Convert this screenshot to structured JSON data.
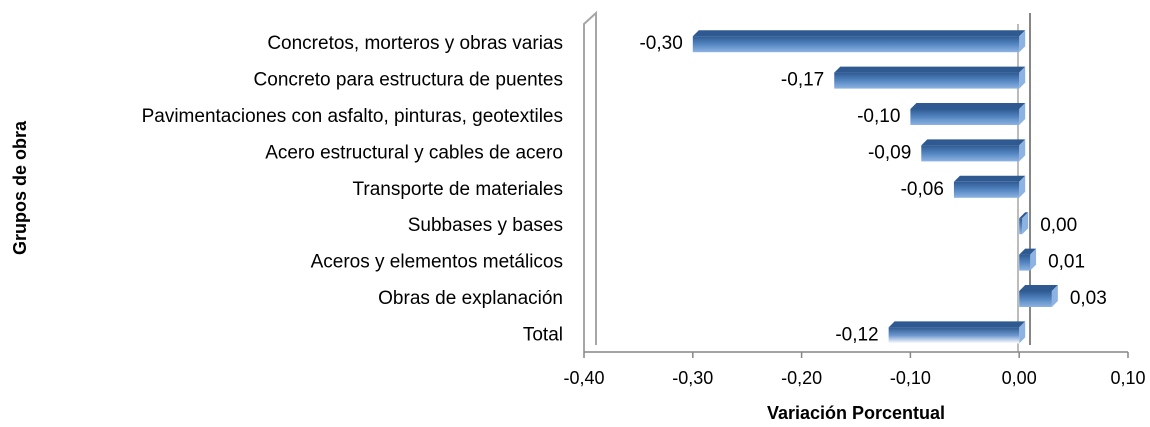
{
  "chart_data": {
    "type": "bar",
    "orientation": "horizontal",
    "categories": [
      "Concretos, morteros y obras varias",
      "Concreto para estructura de puentes",
      "Pavimentaciones con asfalto, pinturas, geotextiles",
      "Acero estructural y cables de acero",
      "Transporte de materiales",
      "Subbases y bases",
      "Aceros y elementos metálicos",
      "Obras de explanación",
      "Total"
    ],
    "values": [
      -0.3,
      -0.17,
      -0.1,
      -0.09,
      -0.06,
      0.0,
      0.01,
      0.03,
      -0.12
    ],
    "data_labels": [
      "-0,30",
      "-0,17",
      "-0,10",
      "-0,09",
      "-0,06",
      "0,00",
      "0,01",
      "0,03",
      "-0,12"
    ],
    "xlabel": "Variación Porcentual",
    "ylabel": "Grupos de obra",
    "xlim": [
      -0.4,
      0.1
    ],
    "xticks": [
      -0.4,
      -0.3,
      -0.2,
      -0.1,
      0.0,
      0.1
    ],
    "xtick_labels": [
      "-0,40",
      "-0,30",
      "-0,20",
      "-0,10",
      "0,00",
      "0,10"
    ],
    "grid": false,
    "legend": "none",
    "style": "3d",
    "colors": {
      "bar": "#4F81BD",
      "bar_dark": "#2F5A91",
      "bar_light": "#8DB3E2",
      "axis": "#868686",
      "wall": "#A6A6A6"
    }
  }
}
